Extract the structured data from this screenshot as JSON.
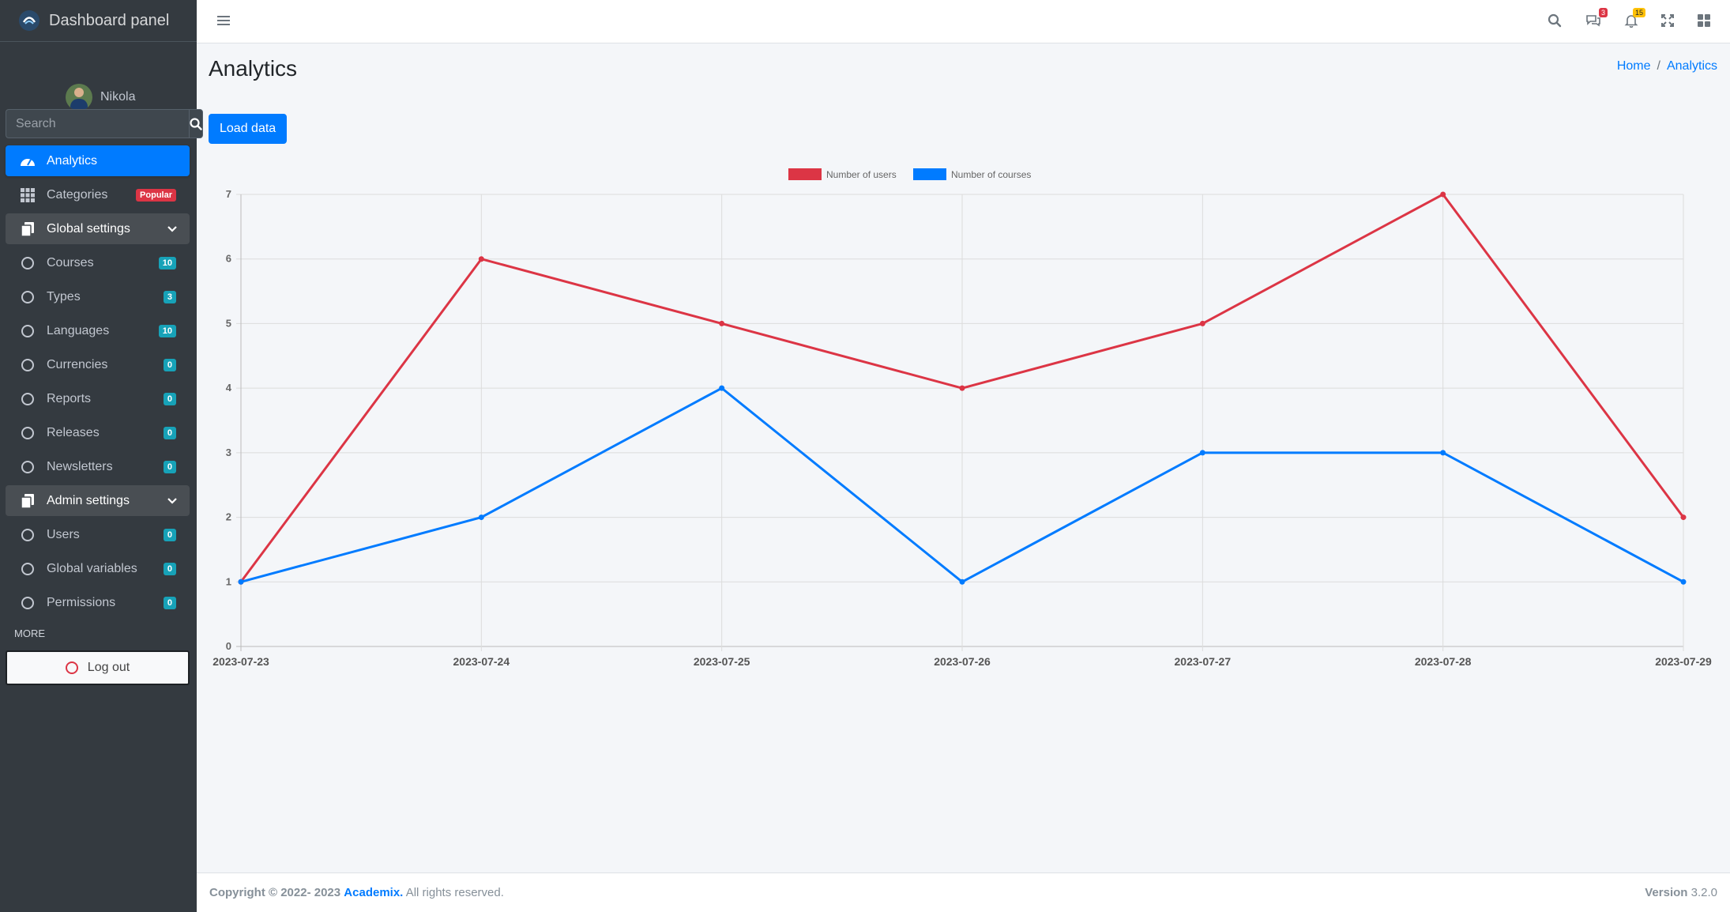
{
  "app": {
    "brand": "Dashboard panel",
    "user_name": "Nikola"
  },
  "search": {
    "placeholder": "Search"
  },
  "sidebar": {
    "items": [
      {
        "label": "Analytics",
        "icon": "gauge-icon"
      },
      {
        "label": "Categories",
        "icon": "grid-icon",
        "badge": "Popular"
      },
      {
        "label": "Global settings",
        "icon": "copy-icon"
      },
      {
        "label": "Courses",
        "badge": "10"
      },
      {
        "label": "Types",
        "badge": "3"
      },
      {
        "label": "Languages",
        "badge": "10"
      },
      {
        "label": "Currencies",
        "badge": "0"
      },
      {
        "label": "Reports",
        "badge": "0"
      },
      {
        "label": "Releases",
        "badge": "0"
      },
      {
        "label": "Newsletters",
        "badge": "0"
      },
      {
        "label": "Admin settings",
        "icon": "copy-icon"
      },
      {
        "label": "Users",
        "badge": "0"
      },
      {
        "label": "Global variables",
        "badge": "0"
      },
      {
        "label": "Permissions",
        "badge": "0"
      }
    ],
    "more_header": "MORE",
    "logout_label": "Log out"
  },
  "navbar": {
    "messages_badge": "3",
    "notifications_badge": "15"
  },
  "page": {
    "title": "Analytics",
    "breadcrumb": {
      "home": "Home",
      "sep": "/",
      "current": "Analytics"
    },
    "load_button": "Load data"
  },
  "colors": {
    "primary": "#007bff",
    "danger": "#dc3545",
    "sidebar": "#343a40",
    "info": "#17a2b8",
    "warning": "#ffc107"
  },
  "chart_data": {
    "type": "line",
    "categories": [
      "2023-07-23",
      "2023-07-24",
      "2023-07-25",
      "2023-07-26",
      "2023-07-27",
      "2023-07-28",
      "2023-07-29"
    ],
    "series": [
      {
        "name": "Number of users",
        "color": "#dc3545",
        "values": [
          1,
          6,
          5,
          4,
          5,
          7,
          2
        ]
      },
      {
        "name": "Number of courses",
        "color": "#007bff",
        "values": [
          1,
          2,
          4,
          1,
          3,
          3,
          1
        ]
      }
    ],
    "yticks": [
      "0",
      "1",
      "2",
      "3",
      "4",
      "5",
      "6",
      "7"
    ],
    "ylim": [
      0,
      7
    ],
    "grid": true,
    "legend": "top-center"
  },
  "footer": {
    "copyright": "Copyright © 2022- 2023",
    "brand": "Academix.",
    "rights": "All rights reserved.",
    "version_label": "Version",
    "version": "3.2.0"
  }
}
